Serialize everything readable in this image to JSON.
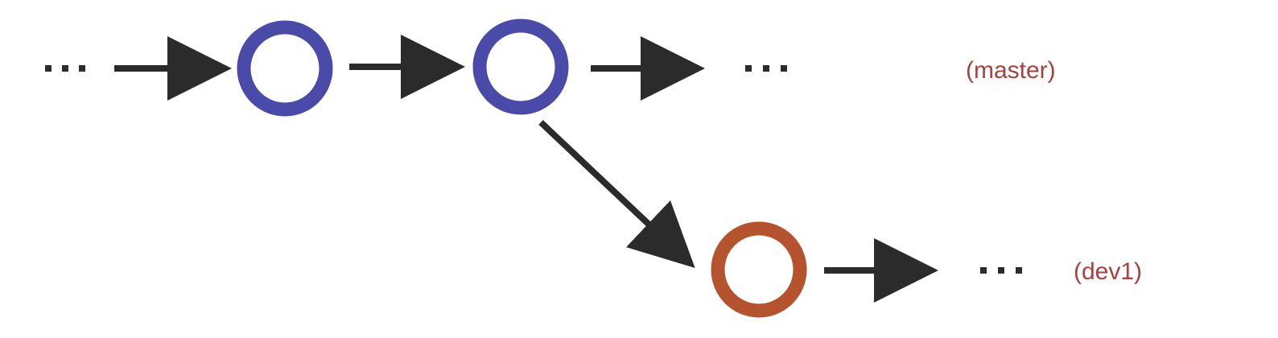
{
  "colors": {
    "master_node": "#4a4aa8",
    "dev_node": "#b5532f",
    "arrow": "#2b2b2b",
    "label": "#a8403e",
    "dots": "#2b2b2b"
  },
  "branches": {
    "master": {
      "label": "(master)"
    },
    "dev1": {
      "label": "(dev1)"
    }
  },
  "ellipsis": "..."
}
